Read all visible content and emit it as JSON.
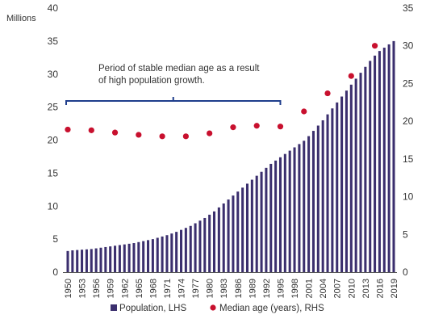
{
  "chart_data": {
    "type": "bar",
    "left_axis": {
      "unit_label": "Millions",
      "ylim": [
        0,
        40
      ],
      "ticks": [
        "0",
        "5",
        "10",
        "15",
        "20",
        "25",
        "30",
        "35",
        "40"
      ]
    },
    "right_axis": {
      "ylim": [
        0,
        35
      ],
      "ticks": [
        "0",
        "5",
        "10",
        "15",
        "20",
        "25",
        "30",
        "35"
      ]
    },
    "x_tick_labels": [
      "1950",
      "1953",
      "1956",
      "1959",
      "1962",
      "1965",
      "1968",
      "1971",
      "1974",
      "1977",
      "1980",
      "1983",
      "1986",
      "1989",
      "1992",
      "1995",
      "1998",
      "2001",
      "2004",
      "2007",
      "2010",
      "2013",
      "2016",
      "2019"
    ],
    "series": [
      {
        "name": "Population, LHS",
        "kind": "bar",
        "axis": "left",
        "color": "#3b2f6e",
        "x": [
          1950,
          1951,
          1952,
          1953,
          1954,
          1955,
          1956,
          1957,
          1958,
          1959,
          1960,
          1961,
          1962,
          1963,
          1964,
          1965,
          1966,
          1967,
          1968,
          1969,
          1970,
          1971,
          1972,
          1973,
          1974,
          1975,
          1976,
          1977,
          1978,
          1979,
          1980,
          1981,
          1982,
          1983,
          1984,
          1985,
          1986,
          1987,
          1988,
          1989,
          1990,
          1991,
          1992,
          1993,
          1994,
          1995,
          1996,
          1997,
          1998,
          1999,
          2000,
          2001,
          2002,
          2003,
          2004,
          2005,
          2006,
          2007,
          2008,
          2009,
          2010,
          2011,
          2012,
          2013,
          2014,
          2015,
          2016,
          2017,
          2018,
          2019
        ],
        "values": [
          3.2,
          3.3,
          3.35,
          3.4,
          3.45,
          3.5,
          3.6,
          3.7,
          3.8,
          3.9,
          4.0,
          4.1,
          4.2,
          4.3,
          4.4,
          4.55,
          4.7,
          4.85,
          5.0,
          5.2,
          5.4,
          5.6,
          5.85,
          6.1,
          6.4,
          6.7,
          7.0,
          7.4,
          7.8,
          8.2,
          8.7,
          9.2,
          9.8,
          10.4,
          11.0,
          11.6,
          12.2,
          12.8,
          13.4,
          14.0,
          14.6,
          15.2,
          15.8,
          16.4,
          16.9,
          17.4,
          17.9,
          18.4,
          18.9,
          19.4,
          19.9,
          20.6,
          21.4,
          22.2,
          23.0,
          23.9,
          24.8,
          25.7,
          26.6,
          27.5,
          28.4,
          29.3,
          30.2,
          31.1,
          32.0,
          32.8,
          33.5,
          34.0,
          34.5,
          35.0
        ]
      },
      {
        "name": "Median age (years), RHS",
        "kind": "scatter",
        "axis": "right",
        "color": "#c8102e",
        "x": [
          1950,
          1955,
          1960,
          1965,
          1970,
          1975,
          1980,
          1985,
          1990,
          1995,
          2000,
          2005,
          2010,
          2015
        ],
        "values": [
          18.9,
          18.8,
          18.5,
          18.2,
          18.0,
          18.0,
          18.4,
          19.2,
          19.4,
          19.3,
          21.3,
          23.7,
          26.0,
          30.0
        ]
      }
    ],
    "annotation": "Period of stable median age as a result of high population growth.",
    "annotation_span": [
      1950,
      1995
    ],
    "legend_position": "bottom",
    "grid": false
  }
}
